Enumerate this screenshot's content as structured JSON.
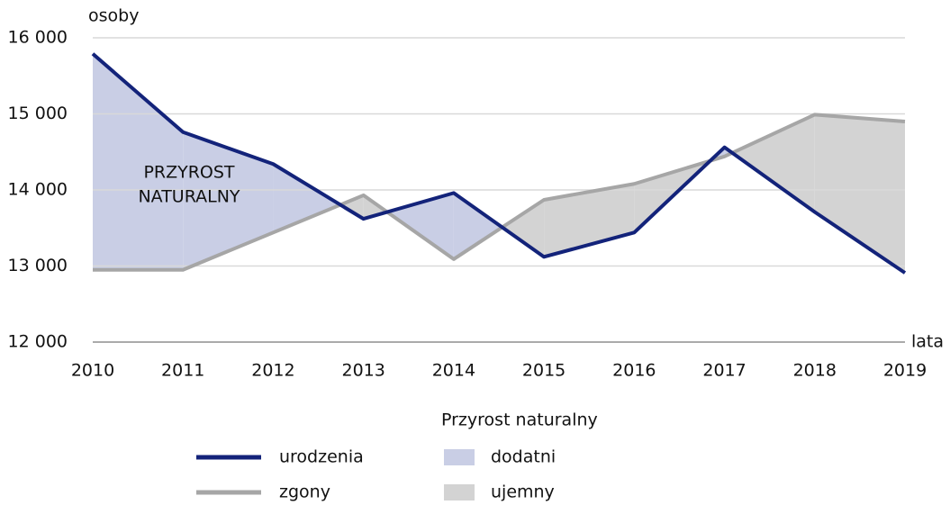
{
  "chart_data": {
    "type": "line",
    "y_label": "osoby",
    "x_label": "lata",
    "annotation": [
      "PRZYROST",
      "NATURALNY"
    ],
    "x": [
      2010,
      2011,
      2012,
      2013,
      2014,
      2015,
      2016,
      2017,
      2018,
      2019
    ],
    "series": [
      {
        "name": "urodzenia",
        "color": "#13237a",
        "values": [
          15790,
          14760,
          14340,
          13620,
          13960,
          13120,
          13440,
          14560,
          13710,
          12910
        ]
      },
      {
        "name": "zgony",
        "color": "#a6a6a6",
        "values": [
          12950,
          12950,
          13440,
          13930,
          13090,
          13870,
          14080,
          14440,
          14990,
          14900
        ]
      }
    ],
    "fill_legend_title": "Przyrost naturalny",
    "fills": [
      {
        "name": "dodatni",
        "color": "#c9cee5"
      },
      {
        "name": "ujemny",
        "color": "#d3d3d3"
      }
    ],
    "xlim": [
      2010,
      2019
    ],
    "xticks": [
      2010,
      2011,
      2012,
      2013,
      2014,
      2015,
      2016,
      2017,
      2018,
      2019
    ],
    "ylim": [
      12000,
      16000
    ],
    "yticks": [
      {
        "value": 12000,
        "label": "12 000"
      },
      {
        "value": 13000,
        "label": "13 000"
      },
      {
        "value": 14000,
        "label": "14 000"
      },
      {
        "value": 15000,
        "label": "15 000"
      },
      {
        "value": 16000,
        "label": "16 000"
      }
    ],
    "grid": true
  }
}
